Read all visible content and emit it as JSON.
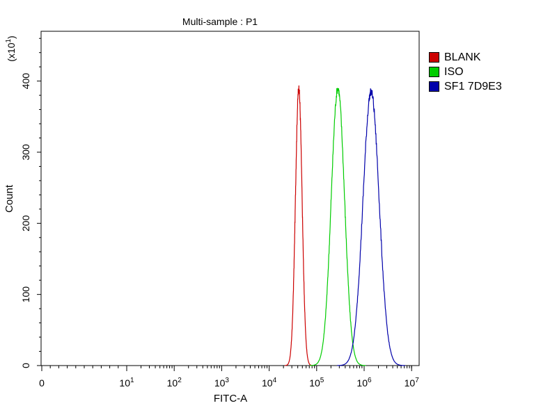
{
  "chart_data": {
    "type": "line",
    "title": "Multi-sample : P1",
    "xlabel": "FITC-A",
    "ylabel": "Count",
    "y_multiplier_label": "(x10",
    "y_multiplier_exp": "1",
    "x_scale": "biexponential",
    "xlim": [
      0,
      10000000
    ],
    "ylim": [
      0,
      470
    ],
    "y_ticks": [
      0,
      100,
      200,
      300,
      400
    ],
    "x_ticks": [
      {
        "value": 0,
        "base": "0",
        "exp": ""
      },
      {
        "value": 10,
        "base": "10",
        "exp": "1"
      },
      {
        "value": 100,
        "base": "10",
        "exp": "2"
      },
      {
        "value": 1000,
        "base": "10",
        "exp": "3"
      },
      {
        "value": 10000,
        "base": "10",
        "exp": "4"
      },
      {
        "value": 100000,
        "base": "10",
        "exp": "5"
      },
      {
        "value": 1000000,
        "base": "10",
        "exp": "6"
      },
      {
        "value": 10000000,
        "base": "10",
        "exp": "7"
      }
    ],
    "grid": false,
    "legend_position": "right",
    "series": [
      {
        "name": "BLANK",
        "color": "#cc0000",
        "peak_x": 42000,
        "peak_y": 390,
        "width_decades": 0.07
      },
      {
        "name": "ISO",
        "color": "#00cc00",
        "peak_x": 280000,
        "peak_y": 390,
        "width_decades": 0.14
      },
      {
        "name": "SF1 7D9E3",
        "color": "#0000aa",
        "peak_x": 1400000,
        "peak_y": 385,
        "width_decades": 0.17
      }
    ]
  }
}
